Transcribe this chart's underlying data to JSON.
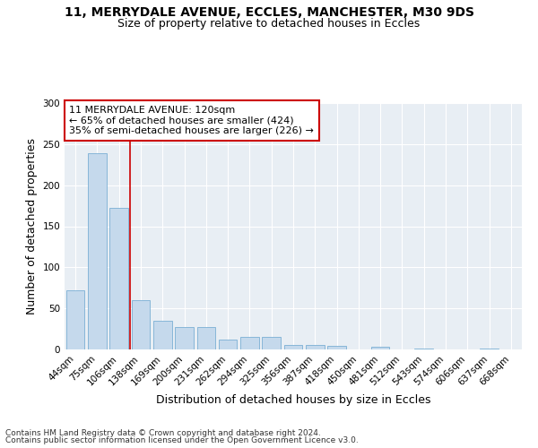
{
  "title1": "11, MERRYDALE AVENUE, ECCLES, MANCHESTER, M30 9DS",
  "title2": "Size of property relative to detached houses in Eccles",
  "xlabel": "Distribution of detached houses by size in Eccles",
  "ylabel": "Number of detached properties",
  "categories": [
    "44sqm",
    "75sqm",
    "106sqm",
    "138sqm",
    "169sqm",
    "200sqm",
    "231sqm",
    "262sqm",
    "294sqm",
    "325sqm",
    "356sqm",
    "387sqm",
    "418sqm",
    "450sqm",
    "481sqm",
    "512sqm",
    "543sqm",
    "574sqm",
    "606sqm",
    "637sqm",
    "668sqm"
  ],
  "values": [
    72,
    239,
    172,
    60,
    35,
    27,
    27,
    12,
    15,
    15,
    6,
    5,
    4,
    0,
    3,
    0,
    1,
    0,
    0,
    1,
    0
  ],
  "bar_color": "#c5d9ec",
  "bar_edge_color": "#7bafd4",
  "property_line_x": 2.5,
  "annotation_text": "11 MERRYDALE AVENUE: 120sqm\n← 65% of detached houses are smaller (424)\n35% of semi-detached houses are larger (226) →",
  "annotation_box_color": "#ffffff",
  "annotation_box_edge_color": "#cc0000",
  "property_line_color": "#cc0000",
  "ylim": [
    0,
    300
  ],
  "yticks": [
    0,
    50,
    100,
    150,
    200,
    250,
    300
  ],
  "footer1": "Contains HM Land Registry data © Crown copyright and database right 2024.",
  "footer2": "Contains public sector information licensed under the Open Government Licence v3.0.",
  "background_color": "#ffffff",
  "plot_bg_color": "#e8eef4",
  "grid_color": "#ffffff",
  "title1_fontsize": 10,
  "title2_fontsize": 9,
  "axis_label_fontsize": 9,
  "tick_fontsize": 7.5,
  "annotation_fontsize": 8,
  "footer_fontsize": 6.5
}
